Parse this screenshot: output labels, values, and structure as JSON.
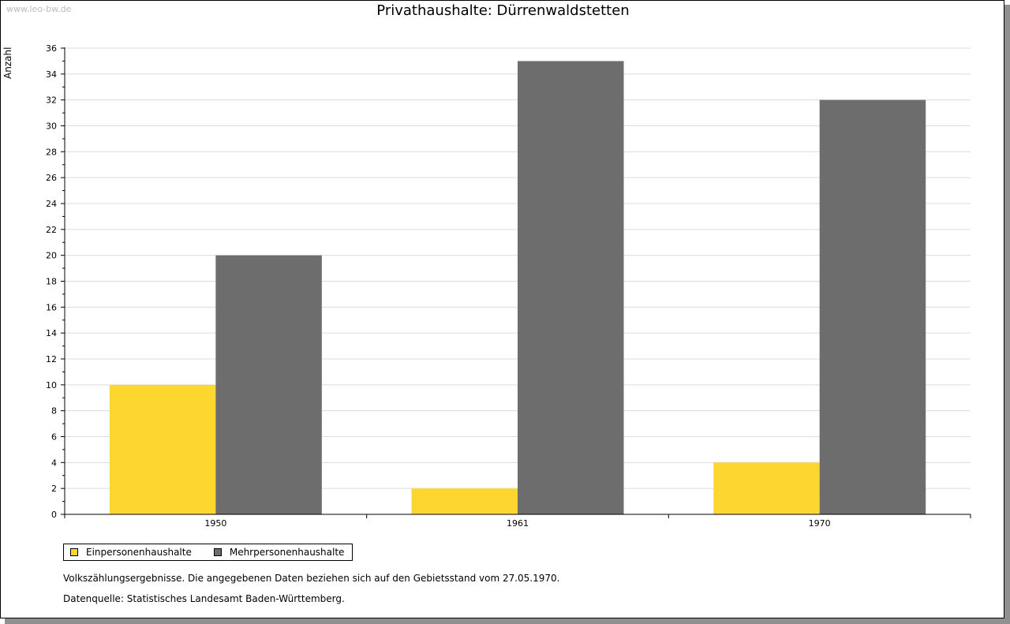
{
  "watermark": "www.leo-bw.de",
  "chart_data": {
    "type": "bar",
    "title": "Privathaushalte: Dürrenwaldstetten",
    "xlabel": "",
    "ylabel": "Anzahl",
    "categories": [
      "1950",
      "1961",
      "1970"
    ],
    "series": [
      {
        "name": "Einpersonenhaushalte",
        "color": "#fdd72f",
        "values": [
          10,
          2,
          4
        ]
      },
      {
        "name": "Mehrpersonenhaushalte",
        "color": "#6d6d6d",
        "values": [
          20,
          35,
          32
        ]
      }
    ],
    "ylim": [
      0,
      36
    ],
    "yticks": [
      "0",
      "2",
      "4",
      "6",
      "8",
      "10",
      "12",
      "14",
      "16",
      "18",
      "20",
      "22",
      "24",
      "26",
      "28",
      "30",
      "32",
      "34",
      "36"
    ],
    "grid": true,
    "legend_position": "bottom-left"
  },
  "footnotes": {
    "note": "Volkszählungsergebnisse. Die angegebenen Daten beziehen sich auf den Gebietsstand vom 27.05.1970.",
    "source": "Datenquelle: Statistisches Landesamt Baden-Württemberg."
  }
}
